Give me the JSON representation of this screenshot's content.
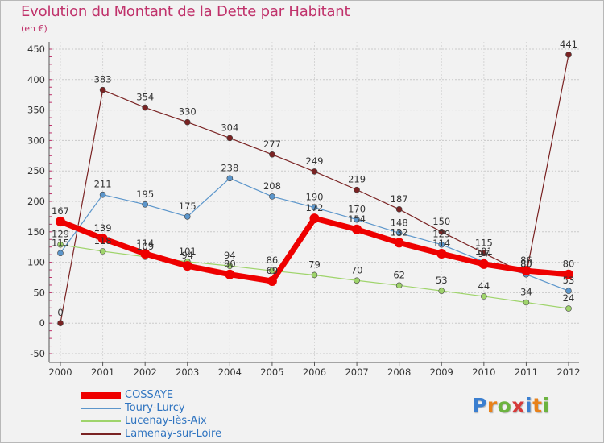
{
  "title": "Evolution du Montant de la Dette par Habitant",
  "subtitle": "(en €)",
  "logo": {
    "text": "Proxiti",
    "letter_colors": [
      "#3b7fd0",
      "#e8811a",
      "#6cb33f",
      "#d63a3a",
      "#3b7fd0",
      "#e8811a",
      "#6cb33f"
    ]
  },
  "chart_data": {
    "type": "line",
    "x": [
      2000,
      2001,
      2002,
      2003,
      2004,
      2005,
      2006,
      2007,
      2008,
      2009,
      2010,
      2011,
      2012
    ],
    "ylim": [
      -50,
      450
    ],
    "yticks": [
      -50,
      0,
      50,
      100,
      150,
      200,
      250,
      300,
      350,
      400,
      450
    ],
    "grid": "horizontal dashed",
    "legend": "bottom-left",
    "series": [
      {
        "name": "COSSAYE",
        "color": "#ee0000",
        "width": 7,
        "marker_radius": 6,
        "values": [
          167,
          139,
          114,
          94,
          80,
          69,
          172,
          154,
          132,
          114,
          97,
          86,
          80
        ],
        "labels": [
          "167",
          "139",
          "114",
          "94",
          "80",
          "69",
          "172",
          "154",
          "132",
          "114",
          "97",
          "86",
          "80"
        ]
      },
      {
        "name": "Toury-Lurcy",
        "color": "#5c96cb",
        "width": 1.2,
        "marker_radius": 3.5,
        "values": [
          115,
          211,
          195,
          175,
          238,
          208,
          190,
          170,
          148,
          129,
          101,
          80,
          53
        ],
        "labels": [
          "115",
          "211",
          "195",
          "175",
          "238",
          "208",
          "190",
          "170",
          "148",
          "129",
          "101",
          "80",
          "53"
        ]
      },
      {
        "name": "Lucenay-lès-Aix",
        "color": "#9fd46b",
        "width": 1.2,
        "marker_radius": 3.5,
        "values": [
          129,
          118,
          109,
          101,
          94,
          86,
          79,
          70,
          62,
          53,
          44,
          34,
          24
        ],
        "labels": [
          "129",
          "118",
          "109",
          "101",
          "94",
          "86",
          "79",
          "70",
          "62",
          "53",
          "44",
          "34",
          "24"
        ]
      },
      {
        "name": "Lamenay-sur-Loire",
        "color": "#7a2323",
        "width": 1.2,
        "marker_radius": 3.5,
        "values": [
          0,
          383,
          354,
          330,
          304,
          277,
          249,
          219,
          187,
          150,
          115,
          80,
          441
        ],
        "labels": [
          "0",
          "383",
          "354",
          "330",
          "304",
          "277",
          "249",
          "219",
          "187",
          "150",
          "115",
          "80",
          "441"
        ]
      }
    ]
  }
}
